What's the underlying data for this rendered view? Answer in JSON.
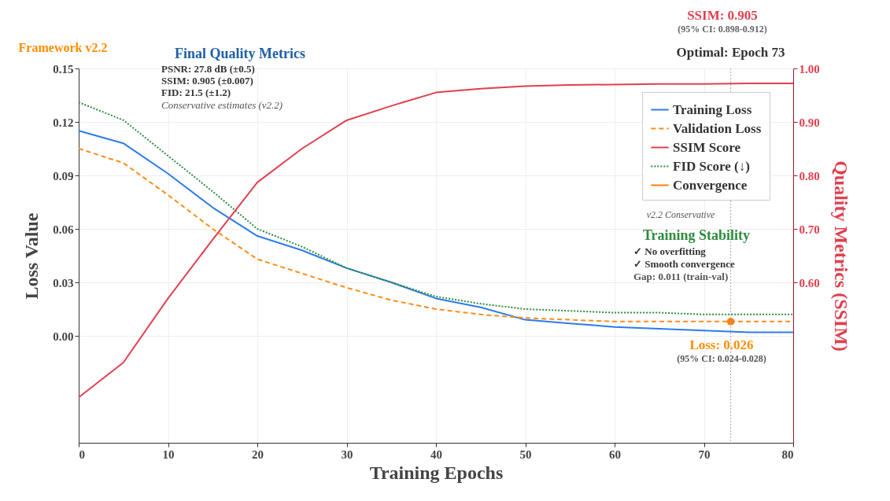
{
  "chart_data": {
    "type": "line",
    "xlabel": "Training Epochs",
    "ylabel": "Loss Value",
    "y2label": "Quality Metrics (SSIM)",
    "xlim": [
      0,
      80
    ],
    "xticks": [
      0,
      10,
      20,
      30,
      40,
      50,
      60,
      70,
      80
    ],
    "ylim": [
      -0.06,
      0.15
    ],
    "yticks": [
      {
        "value": 0,
        "label": "0.00"
      },
      {
        "value": 0.03,
        "label": "0.03"
      },
      {
        "value": 0.06,
        "label": "0.06"
      },
      {
        "value": 0.09,
        "label": "0.09"
      },
      {
        "value": 0.12,
        "label": "0.12"
      },
      {
        "value": 0.15,
        "label": "0.15"
      }
    ],
    "y2lim": [
      0.3,
      1.0
    ],
    "y2ticks": [
      {
        "value": 0.6,
        "label": "0.60"
      },
      {
        "value": 0.7,
        "label": "0.70"
      },
      {
        "value": 0.8,
        "label": "0.80"
      },
      {
        "value": 0.9,
        "label": "0.90"
      },
      {
        "value": 1.0,
        "label": "1.00"
      }
    ],
    "grid": true,
    "legend": "top right",
    "marker": "none",
    "x": [
      0,
      5,
      10,
      15,
      20,
      25,
      30,
      35,
      40,
      45,
      50,
      55,
      60,
      65,
      70,
      75,
      80
    ],
    "series": [
      {
        "name": "Training Loss",
        "color": "#2b7bea",
        "line_style": "solid",
        "values": [
          0.115,
          0.108,
          0.091,
          0.072,
          0.056,
          0.048,
          0.038,
          0.03,
          0.021,
          0.016,
          0.009,
          0.007,
          0.005,
          0.004,
          0.003,
          0.002,
          0.002
        ]
      },
      {
        "name": "Validation Loss",
        "color": "#ff8c1a",
        "line_style": "dashed",
        "values": [
          0.105,
          0.097,
          0.079,
          0.06,
          0.043,
          0.035,
          0.027,
          0.02,
          0.015,
          0.012,
          0.01,
          0.009,
          0.008,
          0.008,
          0.008,
          0.008,
          0.008
        ]
      },
      {
        "name": "SSIM Score",
        "color": "#e0404f",
        "line_style": "solid",
        "axis": "y2",
        "values": [
          0.385,
          0.45,
          0.57,
          0.68,
          0.787,
          0.85,
          0.903,
          0.93,
          0.955,
          0.962,
          0.967,
          0.969,
          0.97,
          0.971,
          0.971,
          0.972,
          0.972
        ]
      },
      {
        "name": "FID Score (↓)",
        "color": "#2e8b3e",
        "line_style": "dotted",
        "values": [
          0.131,
          0.121,
          0.101,
          0.081,
          0.06,
          0.05,
          0.038,
          0.03,
          0.022,
          0.018,
          0.015,
          0.014,
          0.013,
          0.013,
          0.012,
          0.012,
          0.012
        ]
      },
      {
        "name": "Convergence",
        "color": "#ff7f0e",
        "type": "scatter",
        "marker": "circle",
        "x": [
          73
        ],
        "values": [
          0.008
        ]
      }
    ],
    "ref_lines": [
      {
        "axis": "x",
        "value": 73,
        "label": "Optimal: Epoch 73",
        "color": "#aaaaaa",
        "line_style": "dotted"
      }
    ],
    "annotations": [
      "Framework v2.2",
      "Final Quality Metrics",
      "PSNR: 27.8 dB (±0.5)",
      "SSIM: 0.905 (±0.007)",
      "FID: 21.5 (±1.2)",
      "Conservative estimates (v2.2)",
      "SSIM: 0.905",
      "(95% CI: 0.898-0.912)",
      "Training Stability",
      "✓ No overfitting",
      "✓ Smooth convergence",
      "Gap: 0.011 (train-val)",
      "Loss: 0.026",
      "(95% CI: 0.024-0.028)",
      "v2.2 Conservative"
    ]
  }
}
